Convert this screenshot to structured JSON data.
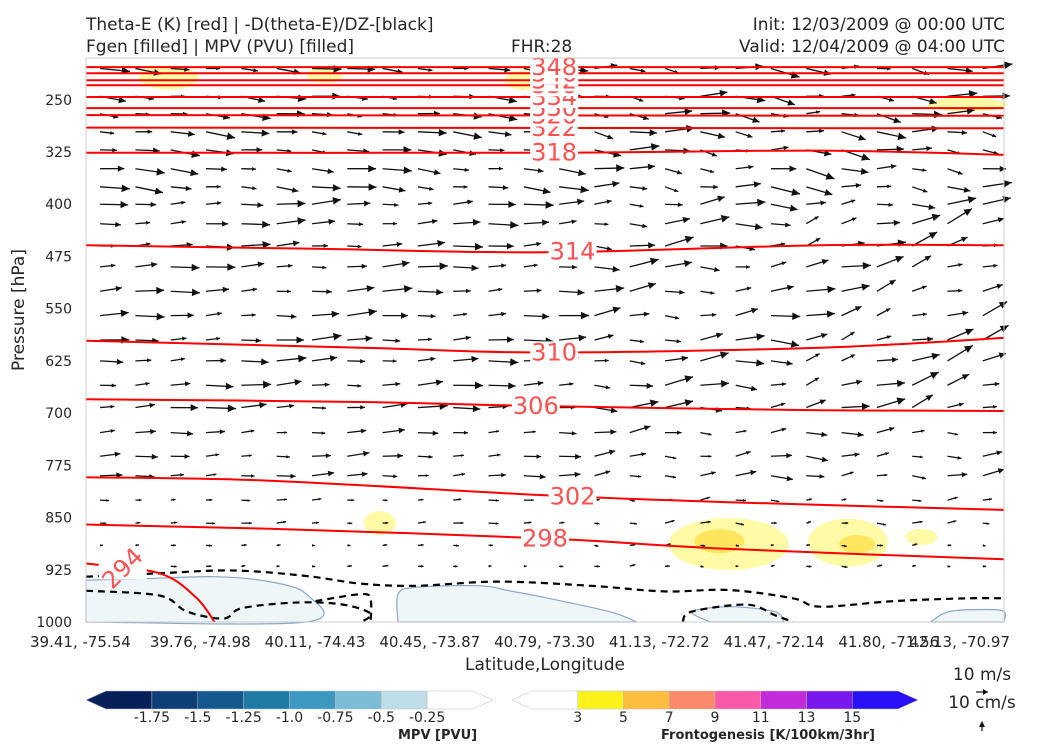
{
  "header": {
    "title_line1": "Theta-E (K) [red] | -D(theta-E)/DZ-[black]",
    "title_line2": "Fgen [filled] | MPV (PVU) [filled]",
    "fhr": "FHR:28",
    "init": "Init: 12/03/2009 @ 00:00 UTC",
    "valid": "Valid: 12/04/2009 @ 04:00 UTC"
  },
  "chart_data": {
    "type": "contour",
    "ylabel": "Pressure [hPa]",
    "xlabel": "Latitude,Longitude",
    "y_ticks": [
      250,
      325,
      400,
      475,
      550,
      625,
      700,
      775,
      850,
      925,
      1000
    ],
    "y_range": [
      190,
      1000
    ],
    "y_inverted": true,
    "x_ticks": [
      "39.41, -75.54",
      "39.76, -74.98",
      "40.11, -74.43",
      "40.45, -73.87",
      "40.79, -73.30",
      "41.13, -72.72",
      "41.47, -72.14",
      "41.80, -71.56",
      "42.13, -70.97"
    ],
    "theta_e_contours": [
      {
        "label": "294",
        "levels_hPa": [
          {
            "x": 0.0,
            "p": 916
          },
          {
            "x": 0.08,
            "p": 930
          },
          {
            "x": 0.12,
            "p": 965
          },
          {
            "x": 0.14,
            "p": 1000
          }
        ]
      },
      {
        "label": "298",
        "levels_hPa": [
          {
            "x": 0.0,
            "p": 860
          },
          {
            "x": 0.2,
            "p": 866
          },
          {
            "x": 0.5,
            "p": 880
          },
          {
            "x": 0.7,
            "p": 895
          },
          {
            "x": 1.0,
            "p": 910
          }
        ]
      },
      {
        "label": "302",
        "levels_hPa": [
          {
            "x": 0.0,
            "p": 792
          },
          {
            "x": 0.2,
            "p": 797
          },
          {
            "x": 0.5,
            "p": 818
          },
          {
            "x": 0.7,
            "p": 828
          },
          {
            "x": 1.0,
            "p": 839
          }
        ]
      },
      {
        "label": "306",
        "levels_hPa": [
          {
            "x": 0.0,
            "p": 680
          },
          {
            "x": 0.3,
            "p": 684
          },
          {
            "x": 0.5,
            "p": 690
          },
          {
            "x": 0.8,
            "p": 696
          },
          {
            "x": 1.0,
            "p": 697
          }
        ]
      },
      {
        "label": "310",
        "levels_hPa": [
          {
            "x": 0.0,
            "p": 596
          },
          {
            "x": 0.3,
            "p": 606
          },
          {
            "x": 0.5,
            "p": 613
          },
          {
            "x": 0.8,
            "p": 606
          },
          {
            "x": 1.0,
            "p": 592
          }
        ]
      },
      {
        "label": "314",
        "levels_hPa": [
          {
            "x": 0.0,
            "p": 459
          },
          {
            "x": 0.25,
            "p": 464
          },
          {
            "x": 0.5,
            "p": 469
          },
          {
            "x": 0.8,
            "p": 459
          },
          {
            "x": 1.0,
            "p": 459
          }
        ]
      },
      {
        "label": "318",
        "levels_hPa": [
          {
            "x": 0.0,
            "p": 326
          },
          {
            "x": 0.5,
            "p": 326
          },
          {
            "x": 0.8,
            "p": 323
          },
          {
            "x": 1.0,
            "p": 329
          }
        ]
      },
      {
        "label": "322",
        "levels_hPa": [
          {
            "x": 0.0,
            "p": 290
          },
          {
            "x": 1.0,
            "p": 291
          }
        ]
      },
      {
        "label": "326",
        "levels_hPa": [
          {
            "x": 0.0,
            "p": 272
          },
          {
            "x": 1.0,
            "p": 273
          }
        ]
      },
      {
        "label": "330",
        "levels_hPa": [
          {
            "x": 0.0,
            "p": 262
          },
          {
            "x": 1.0,
            "p": 262
          }
        ]
      },
      {
        "label": "334",
        "levels_hPa": [
          {
            "x": 0.0,
            "p": 246
          },
          {
            "x": 1.0,
            "p": 246
          }
        ]
      },
      {
        "label": "338",
        "levels_hPa": [
          {
            "x": 0.0,
            "p": 229
          },
          {
            "x": 1.0,
            "p": 229
          }
        ]
      },
      {
        "label": "342",
        "levels_hPa": [
          {
            "x": 0.0,
            "p": 222
          },
          {
            "x": 1.0,
            "p": 222
          }
        ]
      },
      {
        "label": "346",
        "levels_hPa": [
          {
            "x": 0.0,
            "p": 212
          },
          {
            "x": 1.0,
            "p": 212
          }
        ]
      },
      {
        "label": "348",
        "levels_hPa": [
          {
            "x": 0.0,
            "p": 203
          },
          {
            "x": 1.0,
            "p": 203
          }
        ]
      }
    ],
    "mpv_colorbar": {
      "label": "MPV [PVU]",
      "ticks": [
        "-1.75",
        "-1.5",
        "-1.25",
        "-1.0",
        "-0.75",
        "-0.5",
        "-0.25"
      ],
      "colors": [
        "#08205a",
        "#0c3f78",
        "#14588f",
        "#1f7aa6",
        "#3d98c1",
        "#7dbcd5",
        "#bfdde7",
        "#ffffff"
      ]
    },
    "fgen_colorbar": {
      "label": "Frontogenesis [K/100km/3hr]",
      "ticks": [
        "3",
        "5",
        "7",
        "9",
        "11",
        "13",
        "15"
      ],
      "colors": [
        "#ffffff",
        "#fff21a",
        "#fdbd3f",
        "#fb8a6b",
        "#fa5aa8",
        "#c12bd9",
        "#7a16ee",
        "#2810f7"
      ]
    },
    "wind_key": {
      "label1": "10 m/s",
      "label2": "10 cm/s"
    }
  }
}
